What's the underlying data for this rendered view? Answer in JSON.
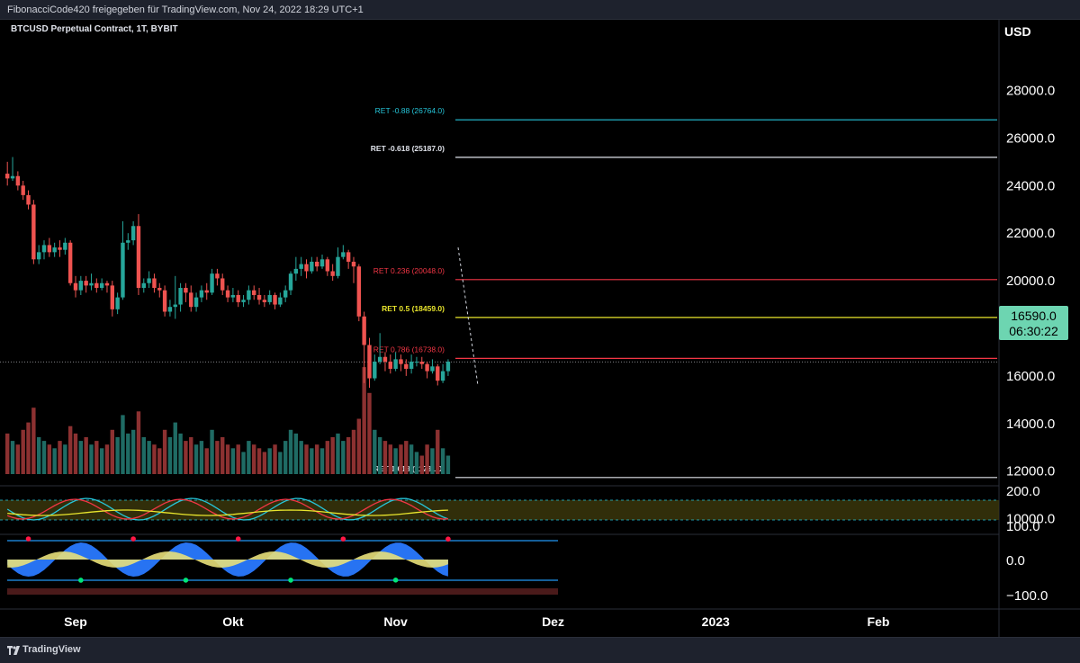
{
  "header": {
    "title": "FibonacciCode420 freigegeben für TradingView.com, Nov 24, 2022 18:29 UTC+1"
  },
  "footer": {
    "brand": "TradingView",
    "logo_icon": "tradingview-logo-icon"
  },
  "chart_info": {
    "symbol": "BTCUSD Perpetual Contract, 1T, BYBIT",
    "currency": "USD",
    "last_price": "16590.0",
    "countdown": "06:30:22",
    "last_price_value": 16590
  },
  "colors": {
    "up": "#26a69a",
    "down": "#ef5350",
    "background": "#000000",
    "price_tag": "#6dd5b1",
    "fib_cyan": "#26c6da",
    "fib_white": "#e0e3eb",
    "fib_red": "#f23645",
    "fib_yellow": "#e8e52d"
  },
  "chart_data": {
    "type": "candlestick",
    "title": "BTCUSD Perpetual Contract, 1T, BYBIT",
    "ylabel": "USD",
    "ylim": [
      9500,
      28800
    ],
    "y_ticks": [
      10000,
      12000,
      14000,
      16000,
      18000,
      20000,
      22000,
      24000,
      26000,
      28000
    ],
    "y_tick_labels": [
      "10000.0",
      "12000.0",
      "14000.0",
      "16000.0",
      "18000.0",
      "20000.0",
      "22000.0",
      "24000.0",
      "26000.0",
      "28000.0"
    ],
    "x_ticks": [
      {
        "label": "Sep",
        "day": 13
      },
      {
        "label": "Okt",
        "day": 43
      },
      {
        "label": "Nov",
        "day": 74
      },
      {
        "label": "Dez",
        "day": 104
      },
      {
        "label": "2023",
        "day": 135
      },
      {
        "label": "Feb",
        "day": 166
      }
    ],
    "fib_levels": [
      {
        "label": "RET -0.88 (26764.0)",
        "price": 26764,
        "color": "#26c6da"
      },
      {
        "label": "RET -0.618 (25187.0)",
        "price": 25187,
        "color": "#e0e3eb"
      },
      {
        "label": "RET 0.236 (20048.0)",
        "price": 20048,
        "color": "#f23645"
      },
      {
        "label": "RET 0.5 (18459.0)",
        "price": 18459,
        "color": "#e8e52d"
      },
      {
        "label": "RET 0.786 (16738.0)",
        "price": 16738,
        "color": "#f23645"
      },
      {
        "label": "RET 1.618 (11731.0)",
        "price": 11731,
        "color": "#e0e3eb"
      }
    ],
    "oscillator1": {
      "y_tick_labels": [
        "200.0",
        "100.0"
      ]
    },
    "oscillator2": {
      "y_tick_labels": [
        "0.0",
        "−100.0"
      ]
    },
    "candles": [
      [
        24.5,
        24.3,
        25.0,
        24.0,
        11
      ],
      [
        24.3,
        24.4,
        25.2,
        24.2,
        9
      ],
      [
        24.4,
        24.0,
        24.6,
        23.8,
        8
      ],
      [
        24.0,
        23.6,
        24.2,
        23.4,
        12
      ],
      [
        23.6,
        23.2,
        23.8,
        23.0,
        14
      ],
      [
        23.2,
        20.9,
        23.4,
        20.7,
        18
      ],
      [
        20.9,
        21.2,
        21.5,
        20.7,
        10
      ],
      [
        21.2,
        21.5,
        21.7,
        20.9,
        9
      ],
      [
        21.5,
        21.2,
        21.8,
        21.0,
        8
      ],
      [
        21.2,
        21.4,
        21.6,
        21.0,
        7
      ],
      [
        21.4,
        21.3,
        21.7,
        21.0,
        9
      ],
      [
        21.3,
        21.6,
        21.8,
        21.1,
        8
      ],
      [
        21.6,
        19.9,
        21.7,
        19.8,
        13
      ],
      [
        19.9,
        19.6,
        20.2,
        19.3,
        11
      ],
      [
        19.6,
        20.0,
        20.2,
        19.4,
        9
      ],
      [
        20.0,
        19.8,
        20.2,
        19.5,
        10
      ],
      [
        19.8,
        19.9,
        20.3,
        19.6,
        8
      ],
      [
        19.9,
        19.7,
        20.1,
        19.5,
        9
      ],
      [
        19.7,
        19.9,
        20.1,
        19.6,
        7
      ],
      [
        19.9,
        19.8,
        20.0,
        19.5,
        8
      ],
      [
        19.8,
        18.8,
        20.0,
        18.5,
        12
      ],
      [
        18.8,
        19.3,
        19.5,
        18.6,
        10
      ],
      [
        19.3,
        21.6,
        22.5,
        19.2,
        16
      ],
      [
        21.6,
        21.7,
        22.0,
        21.3,
        11
      ],
      [
        21.7,
        22.3,
        22.5,
        21.5,
        12
      ],
      [
        22.3,
        19.7,
        22.8,
        19.4,
        17
      ],
      [
        19.7,
        19.9,
        20.1,
        19.5,
        10
      ],
      [
        19.9,
        20.1,
        20.4,
        19.7,
        9
      ],
      [
        20.1,
        19.7,
        20.3,
        19.5,
        8
      ],
      [
        19.7,
        19.6,
        19.9,
        19.3,
        7
      ],
      [
        19.6,
        18.7,
        19.8,
        18.5,
        12
      ],
      [
        18.7,
        18.9,
        19.2,
        18.5,
        10
      ],
      [
        18.9,
        19.0,
        20.2,
        18.4,
        14
      ],
      [
        19.0,
        19.7,
        19.9,
        18.7,
        11
      ],
      [
        19.7,
        19.5,
        19.9,
        19.1,
        9
      ],
      [
        19.5,
        18.9,
        19.8,
        18.7,
        10
      ],
      [
        18.9,
        19.3,
        19.5,
        18.7,
        8
      ],
      [
        19.3,
        19.6,
        19.8,
        19.1,
        9
      ],
      [
        19.6,
        19.5,
        19.9,
        19.2,
        7
      ],
      [
        19.5,
        20.3,
        20.5,
        19.4,
        12
      ],
      [
        20.3,
        20.1,
        20.5,
        19.8,
        9
      ],
      [
        20.1,
        19.6,
        20.3,
        19.4,
        10
      ],
      [
        19.6,
        19.3,
        19.8,
        19.1,
        8
      ],
      [
        19.3,
        19.4,
        19.7,
        19.1,
        7
      ],
      [
        19.4,
        19.1,
        19.6,
        18.9,
        8
      ],
      [
        19.1,
        19.2,
        19.4,
        18.9,
        6
      ],
      [
        19.2,
        19.6,
        19.8,
        19.0,
        9
      ],
      [
        19.6,
        19.4,
        19.8,
        19.2,
        8
      ],
      [
        19.4,
        19.2,
        19.7,
        19.0,
        7
      ],
      [
        19.2,
        19.1,
        19.4,
        18.9,
        6
      ],
      [
        19.1,
        19.4,
        19.6,
        19.0,
        7
      ],
      [
        19.4,
        19.0,
        19.5,
        18.8,
        8
      ],
      [
        19.0,
        19.3,
        19.5,
        18.9,
        6
      ],
      [
        19.3,
        19.6,
        19.8,
        19.1,
        9
      ],
      [
        19.6,
        20.3,
        20.4,
        19.4,
        12
      ],
      [
        20.3,
        20.5,
        21.0,
        20.0,
        11
      ],
      [
        20.5,
        20.7,
        21.0,
        20.2,
        9
      ],
      [
        20.7,
        20.4,
        20.9,
        20.1,
        8
      ],
      [
        20.4,
        20.8,
        21.0,
        20.3,
        7
      ],
      [
        20.8,
        20.6,
        21.0,
        20.4,
        8
      ],
      [
        20.6,
        20.9,
        21.1,
        20.5,
        7
      ],
      [
        20.9,
        20.4,
        21.0,
        20.2,
        9
      ],
      [
        20.4,
        20.2,
        20.7,
        20.0,
        10
      ],
      [
        20.2,
        21.0,
        21.4,
        20.1,
        11
      ],
      [
        21.0,
        21.2,
        21.5,
        20.9,
        9
      ],
      [
        21.2,
        20.8,
        21.3,
        20.5,
        10
      ],
      [
        20.8,
        20.6,
        21.0,
        19.9,
        12
      ],
      [
        20.6,
        18.5,
        20.7,
        18.3,
        15
      ],
      [
        18.5,
        17.3,
        18.7,
        15.7,
        29
      ],
      [
        17.3,
        15.9,
        17.6,
        15.5,
        22
      ],
      [
        15.9,
        16.6,
        16.9,
        15.8,
        12
      ],
      [
        16.6,
        16.8,
        17.8,
        16.5,
        10
      ],
      [
        16.8,
        16.6,
        17.0,
        16.2,
        9
      ],
      [
        16.6,
        16.3,
        16.9,
        16.1,
        8
      ],
      [
        16.3,
        16.7,
        17.0,
        16.2,
        7
      ],
      [
        16.7,
        16.5,
        16.9,
        16.2,
        8
      ],
      [
        16.5,
        16.3,
        16.7,
        16.0,
        9
      ],
      [
        16.3,
        16.6,
        16.9,
        16.1,
        8
      ],
      [
        16.6,
        16.6,
        16.8,
        16.4,
        6
      ],
      [
        16.6,
        16.5,
        16.8,
        16.3,
        5
      ],
      [
        16.5,
        16.2,
        16.6,
        15.9,
        8
      ],
      [
        16.2,
        16.4,
        16.7,
        16.1,
        7
      ],
      [
        16.4,
        15.8,
        16.5,
        15.6,
        12
      ],
      [
        15.8,
        16.2,
        16.5,
        15.7,
        7
      ],
      [
        16.2,
        16.6,
        16.7,
        16.0,
        5
      ]
    ]
  }
}
